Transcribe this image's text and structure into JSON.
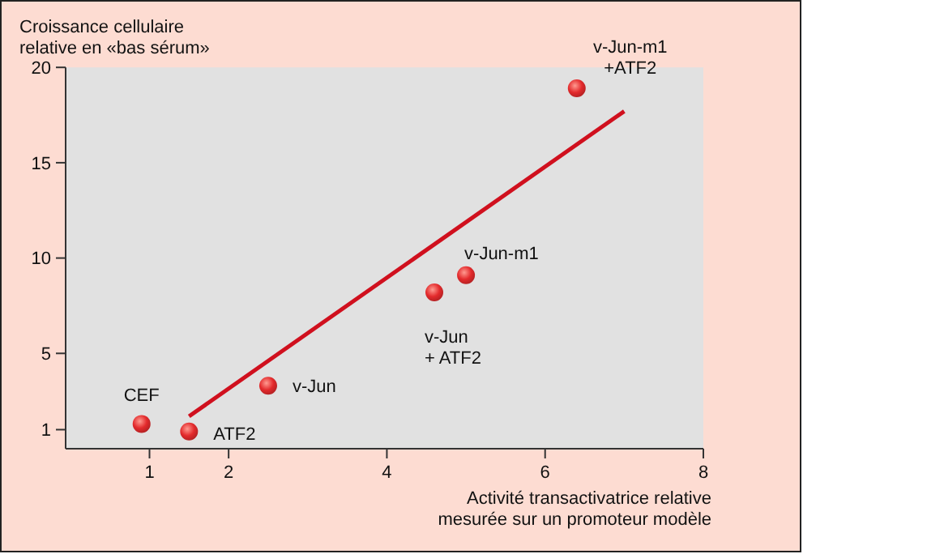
{
  "chart_data": {
    "type": "scatter",
    "xlabel": "Activité transactivatrice relative\nmesurée sur un promoteur modèle",
    "ylabel": "Croissance cellulaire\nrelative en «bas sérum»",
    "xlim": [
      -0.06,
      8
    ],
    "ylim": [
      0,
      20
    ],
    "xticks": [
      1,
      2,
      4,
      6,
      8
    ],
    "yticks": [
      1,
      5,
      10,
      15,
      20
    ],
    "grid": false,
    "series": [
      {
        "color": "#e32a2c",
        "marker": "circle",
        "x": [
          0.9,
          1.5,
          2.5,
          4.6,
          5.0,
          6.4
        ],
        "values": [
          1.3,
          0.9,
          3.3,
          8.2,
          9.1,
          18.9
        ]
      },
      {
        "type": "line",
        "color": "#d0101e",
        "line_style": "solid",
        "x": [
          1.5,
          7.0
        ],
        "values": [
          1.7,
          17.7
        ]
      }
    ],
    "annotations": [
      {
        "text": "CEF",
        "x": 0.9,
        "y": 1.3
      },
      {
        "text": "ATF2",
        "x": 1.5,
        "y": 0.9
      },
      {
        "text": "v-Jun",
        "x": 2.5,
        "y": 3.3
      },
      {
        "text": "v-Jun\n+ ATF2",
        "x": 4.6,
        "y": 8.2
      },
      {
        "text": "v-Jun-m1",
        "x": 5.0,
        "y": 9.1
      },
      {
        "text": "v-Jun-m1\n+ATF2",
        "x": 6.4,
        "y": 18.9
      }
    ]
  }
}
